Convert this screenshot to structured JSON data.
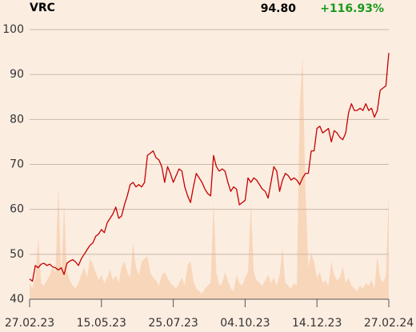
{
  "chart_data": {
    "type": "line",
    "title": "VRC",
    "price_label": "94.80",
    "change_label": "+116.93%",
    "xlim": [
      0,
      125
    ],
    "xticks": [
      {
        "value": 0,
        "label": "27.02.23"
      },
      {
        "value": 25,
        "label": "15.05.23"
      },
      {
        "value": 50,
        "label": "25.07.23"
      },
      {
        "value": 75,
        "label": "04.10.23"
      },
      {
        "value": 100,
        "label": "14.12.23"
      },
      {
        "value": 125,
        "label": "27.02.24"
      }
    ],
    "ylim": [
      40,
      100
    ],
    "yticks": [
      40,
      50,
      60,
      70,
      80,
      90,
      100
    ],
    "grid": true,
    "y2lim": [
      0,
      100
    ],
    "series": [
      {
        "color": "#c40000",
        "values": [
          44.5,
          44.0,
          47.5,
          47.0,
          47.8,
          48.0,
          47.5,
          47.8,
          47.2,
          47.0,
          46.5,
          47.0,
          45.5,
          48.0,
          48.5,
          48.8,
          48.3,
          47.5,
          49.0,
          50.0,
          51.0,
          52.0,
          52.5,
          54.0,
          54.5,
          55.5,
          54.8,
          57.0,
          58.0,
          59.0,
          60.5,
          58.0,
          58.5,
          61.0,
          63.0,
          65.5,
          66.0,
          65.0,
          65.5,
          65.0,
          66.0,
          72.0,
          72.5,
          73.0,
          71.5,
          71.0,
          69.5,
          66.0,
          69.5,
          68.0,
          66.0,
          67.5,
          69.0,
          68.5,
          65.0,
          63.0,
          61.5,
          65.0,
          68.0,
          67.0,
          66.0,
          64.5,
          63.5,
          63.0,
          72.0,
          69.5,
          68.5,
          69.0,
          68.5,
          66.0,
          64.0,
          65.0,
          64.5,
          61.0,
          61.5,
          62.0,
          67.0,
          66.0,
          67.0,
          66.5,
          65.5,
          64.5,
          64.0,
          62.5,
          66.0,
          69.5,
          68.5,
          64.0,
          66.5,
          68.0,
          67.5,
          66.5,
          67.0,
          66.5,
          65.5,
          67.0,
          68.0,
          68.0,
          73.0,
          73.0,
          78.0,
          78.5,
          77.0,
          77.5,
          78.0,
          75.0,
          77.5,
          77.0,
          76.0,
          75.5,
          77.0,
          81.5,
          83.5,
          82.0,
          82.0,
          82.5,
          82.0,
          83.5,
          82.0,
          82.5,
          80.5,
          82.0,
          86.5,
          87.0,
          87.5,
          94.8
        ]
      },
      {
        "color": "#f8d6ba",
        "axis": "y2",
        "values": [
          6,
          4,
          8,
          23,
          6,
          5,
          7,
          9,
          12,
          10,
          42,
          8,
          35,
          10,
          7,
          5,
          4,
          6,
          9,
          12,
          8,
          15,
          13,
          10,
          7,
          9,
          6,
          8,
          11,
          7,
          9,
          6,
          12,
          14,
          10,
          8,
          21,
          12,
          9,
          14,
          15,
          16,
          10,
          8,
          7,
          5,
          9,
          10,
          8,
          6,
          5,
          4,
          6,
          8,
          5,
          13,
          14,
          7,
          4,
          3,
          2,
          4,
          5,
          6,
          36,
          10,
          5,
          6,
          10,
          7,
          4,
          3,
          9,
          6,
          5,
          8,
          10,
          36,
          10,
          7,
          6,
          5,
          7,
          9,
          6,
          8,
          5,
          9,
          19,
          6,
          5,
          4,
          6,
          5,
          71,
          90,
          40,
          12,
          17,
          14,
          8,
          10,
          6,
          7,
          5,
          14,
          9,
          7,
          8,
          12,
          6,
          8,
          5,
          4,
          3,
          5,
          4,
          6,
          5,
          7,
          4,
          16,
          8,
          6,
          9,
          39
        ]
      }
    ]
  }
}
